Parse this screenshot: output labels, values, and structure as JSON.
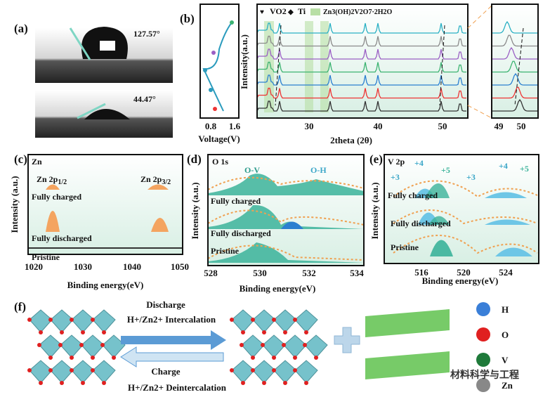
{
  "panel_a": {
    "label": "(a)",
    "angle_top": "127.57°",
    "angle_bottom": "44.47°"
  },
  "panel_b": {
    "label": "(b)",
    "legend": [
      "VO2",
      "Ti",
      "Zn3(OH)2V2O7·2H2O"
    ],
    "y_label": "Intensity(a.u.)",
    "x_label": "2theta (2θ)",
    "x_ticks": [
      "30",
      "40",
      "50"
    ],
    "voltage_label": "Voltage(V)",
    "voltage_ticks": [
      "0.8",
      "1.6"
    ],
    "zoom_ticks": [
      "49",
      "50"
    ]
  },
  "panel_c": {
    "label": "(c)",
    "element": "Zn",
    "peak_1": {
      "main": "Zn 2p",
      "sub": "1/2"
    },
    "peak_2": {
      "main": "Zn 2p",
      "sub": "3/2"
    },
    "states": [
      "Fully charged",
      "Fully discharged",
      "Pristine"
    ],
    "y_label": "Intensity (a.u.)",
    "x_label": "Binding energy(eV)",
    "x_ticks": [
      "1020",
      "1030",
      "1040",
      "1050"
    ]
  },
  "panel_d": {
    "label": "(d)",
    "element": "O 1s",
    "peaks": [
      "O-V",
      "O-H"
    ],
    "states": [
      "Fully charged",
      "Fully discharged",
      "Pristine"
    ],
    "y_label": "Intensity (a.u.)",
    "x_label": "Binding energy(eV)",
    "x_ticks": [
      "528",
      "530",
      "532",
      "534"
    ]
  },
  "panel_e": {
    "label": "(e)",
    "element": "V 2p",
    "valences": [
      "+3",
      "+4",
      "+5",
      "+3",
      "+4",
      "+5"
    ],
    "states": [
      "Fully charged",
      "Fully discharged",
      "Pristine"
    ],
    "y_label": "Intensity (a.u.)",
    "x_label": "Binding energy(eV)",
    "x_ticks": [
      "516",
      "520",
      "524"
    ]
  },
  "panel_f": {
    "label": "(f)",
    "discharge": "Discharge",
    "intercalation": "H+/Zn2+ Intercalation",
    "charge": "Charge",
    "deintercalation": "H+/Zn2+ Deintercalation",
    "atoms": [
      "H",
      "O",
      "V",
      "Zn"
    ]
  },
  "watermark": "材料科学与工程"
}
